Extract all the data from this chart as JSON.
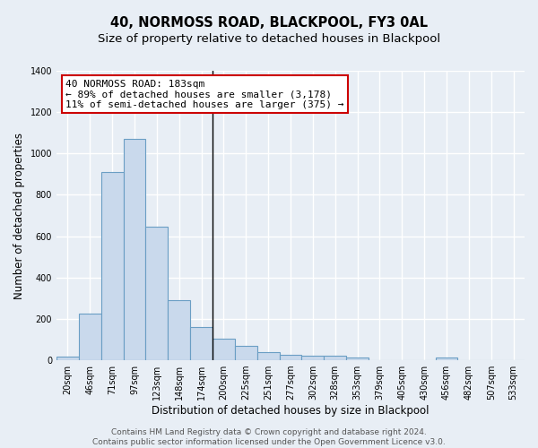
{
  "title": "40, NORMOSS ROAD, BLACKPOOL, FY3 0AL",
  "subtitle": "Size of property relative to detached houses in Blackpool",
  "xlabel": "Distribution of detached houses by size in Blackpool",
  "ylabel": "Number of detached properties",
  "categories": [
    "20sqm",
    "46sqm",
    "71sqm",
    "97sqm",
    "123sqm",
    "148sqm",
    "174sqm",
    "200sqm",
    "225sqm",
    "251sqm",
    "277sqm",
    "302sqm",
    "328sqm",
    "353sqm",
    "379sqm",
    "405sqm",
    "430sqm",
    "456sqm",
    "482sqm",
    "507sqm",
    "533sqm"
  ],
  "values": [
    18,
    225,
    910,
    1070,
    645,
    290,
    160,
    105,
    70,
    40,
    25,
    22,
    20,
    13,
    0,
    0,
    0,
    13,
    0,
    0,
    0
  ],
  "bar_color": "#c9d9ec",
  "bar_edge_color": "#6a9ec4",
  "background_color": "#e8eef5",
  "grid_color": "#ffffff",
  "annotation_text": "40 NORMOSS ROAD: 183sqm\n← 89% of detached houses are smaller (3,178)\n11% of semi-detached houses are larger (375) →",
  "annotation_box_color": "#ffffff",
  "annotation_box_edge": "#cc0000",
  "vline_x_index": 6.5,
  "ylim": [
    0,
    1400
  ],
  "yticks": [
    0,
    200,
    400,
    600,
    800,
    1000,
    1200,
    1400
  ],
  "footer_text": "Contains HM Land Registry data © Crown copyright and database right 2024.\nContains public sector information licensed under the Open Government Licence v3.0.",
  "title_fontsize": 10.5,
  "subtitle_fontsize": 9.5,
  "xlabel_fontsize": 8.5,
  "ylabel_fontsize": 8.5,
  "tick_fontsize": 7,
  "annotation_fontsize": 8,
  "footer_fontsize": 6.5
}
